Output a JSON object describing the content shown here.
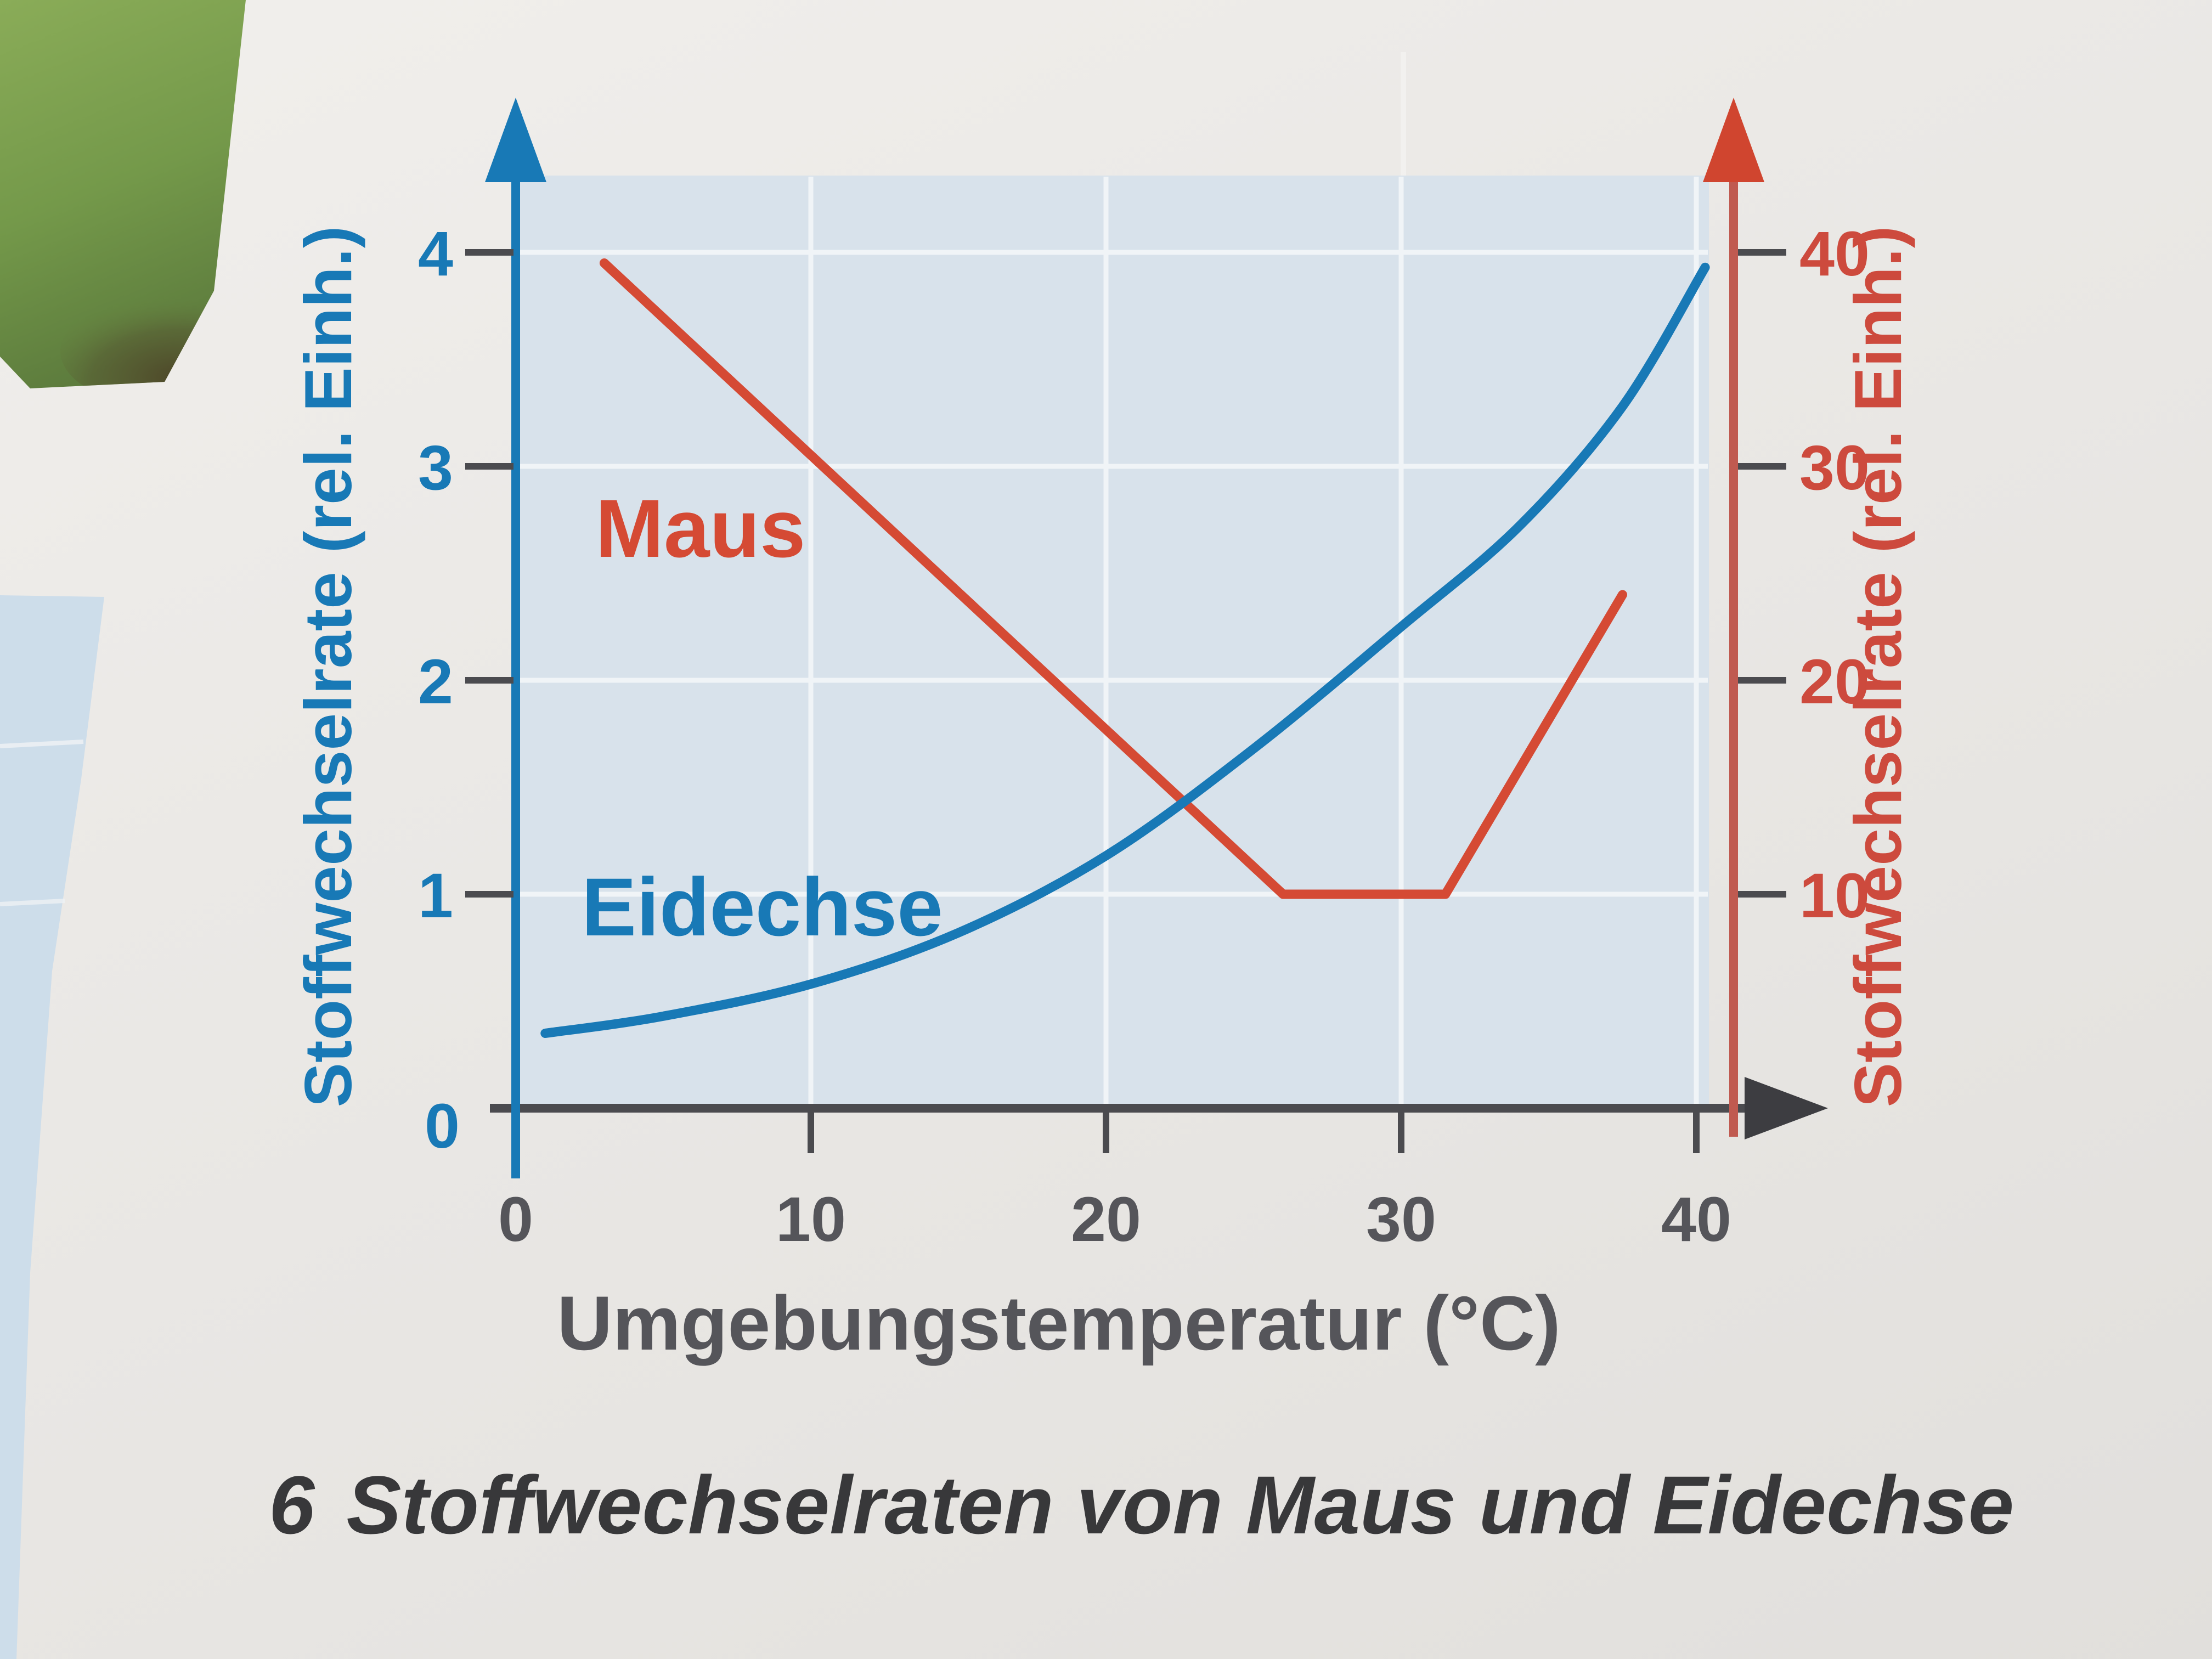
{
  "caption": {
    "number": "6",
    "text": "Stoffwechselraten von Maus und Eidechse"
  },
  "icons": {
    "axis_arrow_up": "up-triangle-arrowhead",
    "axis_arrow_right": "right-triangle-arrowhead"
  },
  "colors": {
    "blue": "#1879b6",
    "red_curve": "#d54a34",
    "red_axis": "#c05a50",
    "red_text": "#cd4a3d",
    "axis_dark": "#4b4b4f",
    "tick_text": "#55555a",
    "caption_text": "#38383a",
    "plot_bg": "#d8e2eb",
    "grid": "#f0f4f7",
    "page_bg": "#eae8e5",
    "photo_green": "#7da24e",
    "edge_strip": "#cdddea"
  },
  "chart_data": {
    "type": "line",
    "title": "",
    "xlabel": "Umgebungstemperatur (°C)",
    "x_ticks": [
      "0",
      "10",
      "20",
      "30",
      "40"
    ],
    "x_range": [
      0,
      44
    ],
    "grid": true,
    "legend_position": "inline-labels",
    "left_axis": {
      "label": "Stoffwechselrate (rel. Einh.)",
      "ticks": [
        "0",
        "1",
        "2",
        "3",
        "4"
      ],
      "range": [
        0,
        4.35
      ],
      "color": "#1879b6"
    },
    "right_axis": {
      "label": "Stoffwechselrate (rel. Einh.)",
      "ticks": [
        "10",
        "20",
        "30",
        "40"
      ],
      "range": [
        0,
        43.5
      ],
      "color": "#cd4a3d"
    },
    "series": [
      {
        "name": "Eidechse",
        "axis": "left",
        "color": "#1879b6",
        "shape": "smooth-exponential",
        "points": [
          [
            1,
            0.35
          ],
          [
            5,
            0.43
          ],
          [
            10,
            0.58
          ],
          [
            15,
            0.82
          ],
          [
            20,
            1.18
          ],
          [
            25,
            1.68
          ],
          [
            30,
            2.25
          ],
          [
            34,
            2.72
          ],
          [
            37.5,
            3.28
          ],
          [
            40.3,
            3.93
          ]
        ]
      },
      {
        "name": "Maus",
        "axis": "right",
        "color": "#d54a34",
        "shape": "polyline",
        "points": [
          [
            3,
            39.5
          ],
          [
            26,
            10
          ],
          [
            31.5,
            10
          ],
          [
            37.5,
            24
          ]
        ]
      }
    ]
  }
}
